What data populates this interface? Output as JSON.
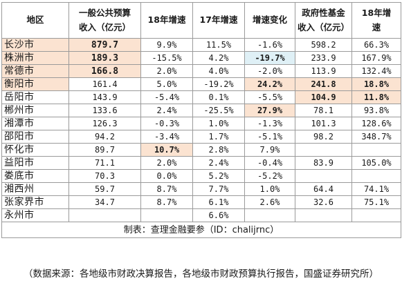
{
  "columns": [
    {
      "key": "region",
      "label_lines": [
        "地区"
      ]
    },
    {
      "key": "gpb_rev",
      "label_lines": [
        "一般公共预算",
        "收入（亿元）"
      ]
    },
    {
      "key": "g18",
      "label_lines": [
        "18年增速"
      ]
    },
    {
      "key": "g17",
      "label_lines": [
        "17年增速"
      ]
    },
    {
      "key": "chg",
      "label_lines": [
        "增速变化"
      ]
    },
    {
      "key": "gf_rev",
      "label_lines": [
        "政府性基金",
        "收入（亿元）"
      ]
    },
    {
      "key": "gf18",
      "label_lines": [
        "18年增",
        "速"
      ]
    }
  ],
  "rows": [
    {
      "region": "长沙市",
      "gpb_rev": "879.7",
      "g18": "9.9%",
      "g17": "11.5%",
      "chg": "-1.6%",
      "gf_rev": "598.2",
      "gf18": "66.3%"
    },
    {
      "region": "株洲市",
      "gpb_rev": "189.3",
      "g18": "-15.5%",
      "g17": "4.2%",
      "chg": "-19.7%",
      "gf_rev": "233.9",
      "gf18": "167.9%"
    },
    {
      "region": "常德市",
      "gpb_rev": "166.8",
      "g18": "2.0%",
      "g17": "4.0%",
      "chg": "-2.0%",
      "gf_rev": "113.9",
      "gf18": "132.4%"
    },
    {
      "region": "衡阳市",
      "gpb_rev": "161.4",
      "g18": "5.0%",
      "g17": "-19.2%",
      "chg": "24.2%",
      "gf_rev": "241.8",
      "gf18": "18.8%"
    },
    {
      "region": "岳阳市",
      "gpb_rev": "143.9",
      "g18": "-5.4%",
      "g17": "0.1%",
      "chg": "-5.5%",
      "gf_rev": "104.9",
      "gf18": "11.8%"
    },
    {
      "region": "郴州市",
      "gpb_rev": "133.6",
      "g18": "2.4%",
      "g17": "-25.5%",
      "chg": "27.9%",
      "gf_rev": "78.1",
      "gf18": "93.8%"
    },
    {
      "region": "湘潭市",
      "gpb_rev": "126.3",
      "g18": "-0.3%",
      "g17": "1.0%",
      "chg": "-1.3%",
      "gf_rev": "101.3",
      "gf18": "128.6%"
    },
    {
      "region": "邵阳市",
      "gpb_rev": "94.2",
      "g18": "-3.4%",
      "g17": "1.7%",
      "chg": "-5.1%",
      "gf_rev": "98.2",
      "gf18": "348.7%"
    },
    {
      "region": "怀化市",
      "gpb_rev": "89.7",
      "g18": "10.7%",
      "g17": "2.8%",
      "chg": "7.9%",
      "gf_rev": "",
      "gf18": ""
    },
    {
      "region": "益阳市",
      "gpb_rev": "71.1",
      "g18": "2.0%",
      "g17": "2.4%",
      "chg": "-0.4%",
      "gf_rev": "83.9",
      "gf18": "105.0%"
    },
    {
      "region": "娄底市",
      "gpb_rev": "70.3",
      "g18": "0.0%",
      "g17": "5.2%",
      "chg": "-5.2%",
      "gf_rev": "",
      "gf18": ""
    },
    {
      "region": "湘西州",
      "gpb_rev": "59.7",
      "g18": "8.7%",
      "g17": "7.7%",
      "chg": "1.0%",
      "gf_rev": "64.4",
      "gf18": "74.1%"
    },
    {
      "region": "张家界市",
      "gpb_rev": "34.7",
      "g18": "8.7%",
      "g17": "6.1%",
      "chg": "2.6%",
      "gf_rev": "32.6",
      "gf18": "75.1%"
    },
    {
      "region": "永州市",
      "gpb_rev": "",
      "g18": "",
      "g17": "6.6%",
      "chg": "",
      "gf_rev": "",
      "gf18": ""
    }
  ],
  "highlights": [
    {
      "row": 0,
      "col": "region",
      "color": "#fbe3d1"
    },
    {
      "row": 0,
      "col": "gpb_rev",
      "color": "#fbe3d1",
      "bold": true
    },
    {
      "row": 1,
      "col": "region",
      "color": "#fbe3d1"
    },
    {
      "row": 1,
      "col": "gpb_rev",
      "color": "#fbe3d1",
      "bold": true
    },
    {
      "row": 1,
      "col": "chg",
      "color": "#dff0f6",
      "bold": true
    },
    {
      "row": 2,
      "col": "region",
      "color": "#fbe3d1"
    },
    {
      "row": 2,
      "col": "gpb_rev",
      "color": "#fbe3d1",
      "bold": true
    },
    {
      "row": 3,
      "col": "region",
      "color": "#fbe3d1"
    },
    {
      "row": 3,
      "col": "chg",
      "color": "#fbe3d1",
      "bold": true
    },
    {
      "row": 3,
      "col": "gf_rev",
      "color": "#fbe3d1",
      "bold": true
    },
    {
      "row": 3,
      "col": "gf18",
      "color": "#fbe3d1",
      "bold": true
    },
    {
      "row": 4,
      "col": "gf_rev",
      "color": "#fbe3d1",
      "bold": true
    },
    {
      "row": 4,
      "col": "gf18",
      "color": "#fbe3d1",
      "bold": true
    },
    {
      "row": 5,
      "col": "chg",
      "color": "#fbe3d1",
      "bold": true
    },
    {
      "row": 8,
      "col": "g18",
      "color": "#fbe3d1",
      "bold": true
    }
  ],
  "made_by": "制表：查理金融要参（ID：chalijrnc）",
  "source_note": "（数据来源：各地级市财政决算报告，各地级市财政预算执行报告，国盛证券研究所）"
}
